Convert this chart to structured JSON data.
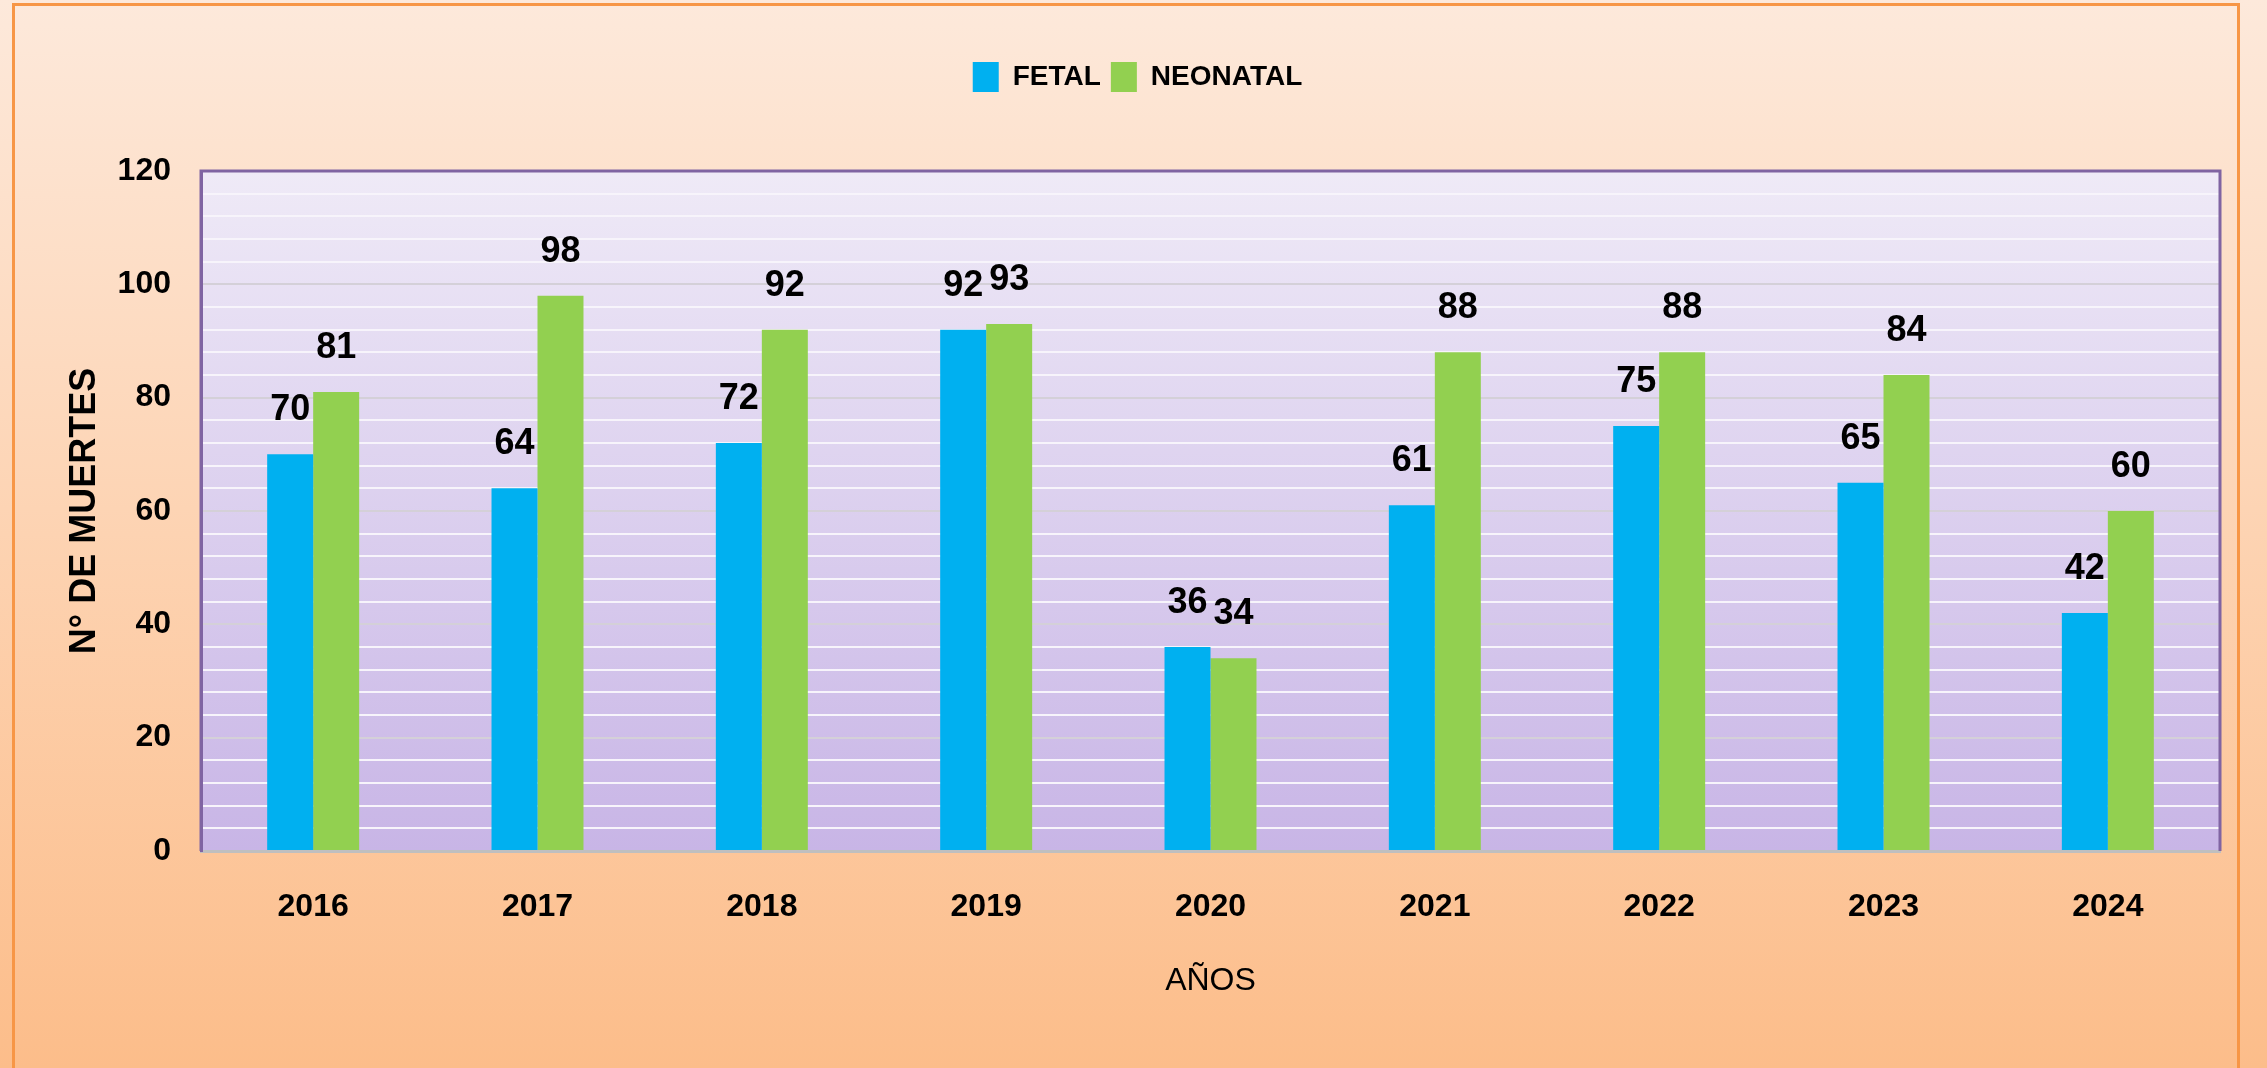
{
  "chart_data": {
    "type": "bar",
    "xlabel": "AÑOS",
    "ylabel": "N° DE MUERTES",
    "categories": [
      "2016",
      "2017",
      "2018",
      "2019",
      "2020",
      "2021",
      "2022",
      "2023",
      "2024"
    ],
    "series": [
      {
        "name": "FETAL",
        "color": "#00b0f0",
        "values": [
          70,
          64,
          72,
          92,
          36,
          61,
          75,
          65,
          42
        ]
      },
      {
        "name": "NEONATAL",
        "color": "#92d050",
        "values": [
          81,
          98,
          92,
          93,
          34,
          88,
          88,
          84,
          60
        ]
      }
    ],
    "ylim": [
      0,
      120
    ],
    "yticks": [
      0,
      {
        "value": 4,
        "label": null
      },
      {
        "value": 8,
        "label": null
      },
      {
        "value": 12,
        "label": null
      },
      {
        "value": 16,
        "label": null
      },
      20,
      {
        "value": 24,
        "label": null
      },
      {
        "value": 28,
        "label": null
      },
      {
        "value": 32,
        "label": null
      },
      {
        "value": 36,
        "label": null
      },
      40,
      {
        "value": 44,
        "label": null
      },
      {
        "value": 48,
        "label": null
      },
      {
        "value": 52,
        "label": null
      },
      {
        "value": 56,
        "label": null
      },
      60,
      {
        "value": 64,
        "label": null
      },
      {
        "value": 68,
        "label": null
      },
      {
        "value": 72,
        "label": null
      },
      {
        "value": 76,
        "label": null
      },
      80,
      {
        "value": 84,
        "label": null
      },
      {
        "value": 88,
        "label": null
      },
      {
        "value": 92,
        "label": null
      },
      {
        "value": 96,
        "label": null
      },
      100,
      {
        "value": 104,
        "label": null
      },
      {
        "value": 108,
        "label": null
      },
      {
        "value": 112,
        "label": null
      },
      {
        "value": 116,
        "label": null
      },
      120
    ],
    "grid": "y",
    "legend": "top",
    "data_labels": true
  }
}
